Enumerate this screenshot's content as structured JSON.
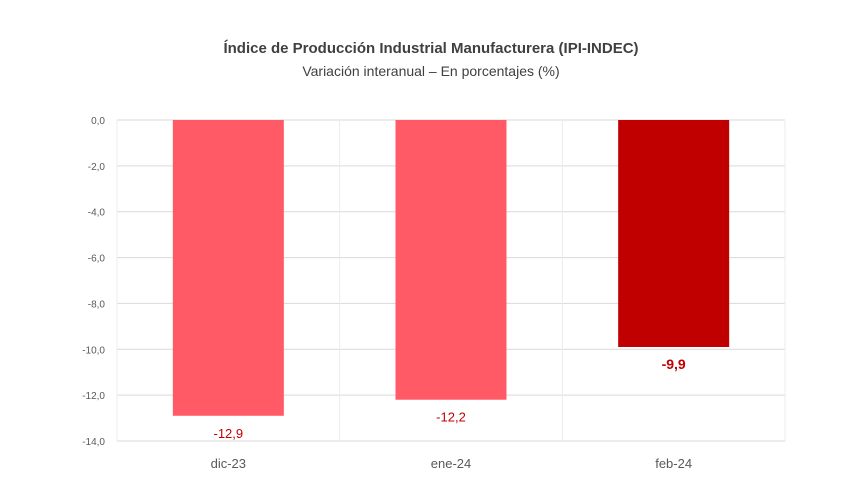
{
  "chart_data": {
    "type": "bar",
    "title": "Índice de Producción Industrial Manufacturera (IPI-INDEC)",
    "subtitle": "Variación interanual – En porcentajes (%)",
    "categories": [
      "dic-23",
      "ene-24",
      "feb-24"
    ],
    "series": [
      {
        "values": [
          -12.9,
          -12.2,
          -9.9
        ],
        "value_labels": [
          "-12,9",
          "-12,2",
          "-9,9"
        ]
      }
    ],
    "ylim": [
      -14,
      0
    ],
    "yticks": [
      0,
      -2,
      -4,
      -6,
      -8,
      -10,
      -12,
      -14
    ],
    "ytick_labels": [
      "0,0",
      "-2,0",
      "-4,0",
      "-6,0",
      "-8,0",
      "-10,0",
      "-12,0",
      "-14,0"
    ],
    "grid": true,
    "legend": "none",
    "colors": {
      "bar": "#ff5a66",
      "highlight_bar": "#c00000",
      "label": "#c00000",
      "tick": "#595959",
      "grid": "#d9d9d9"
    },
    "highlight_index": 2
  }
}
